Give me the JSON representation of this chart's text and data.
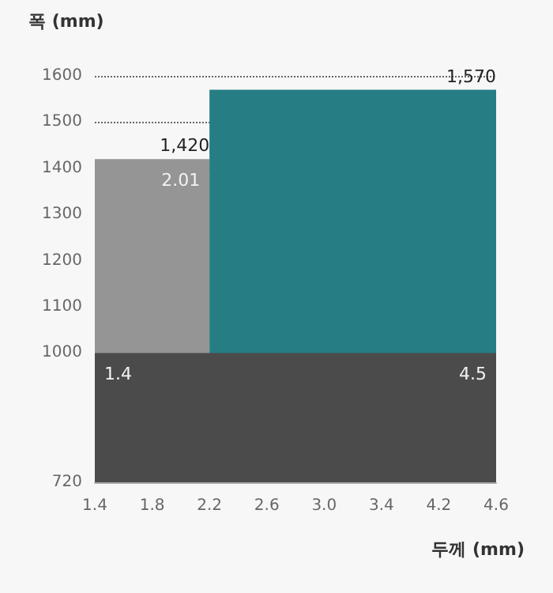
{
  "chart_data": {
    "type": "area",
    "ylabel": "폭 (mm)",
    "xlabel": "두께 (mm)",
    "categories": [
      "1.4",
      "1.8",
      "2.2",
      "2.6",
      "3.0",
      "3.4",
      "4.2",
      "4.6"
    ],
    "series": [
      {
        "color": "#959595",
        "values": [
          1420,
          1420,
          1420,
          null,
          null,
          null,
          null,
          null
        ],
        "value_labels": [
          null,
          null,
          "1,420",
          null,
          null,
          null,
          null,
          null
        ]
      },
      {
        "color": "#277d84",
        "values": [
          null,
          null,
          1570,
          1570,
          1570,
          1570,
          1570,
          1570
        ],
        "value_labels": [
          null,
          null,
          null,
          null,
          null,
          null,
          null,
          "1,570"
        ]
      }
    ],
    "bands": [
      {
        "axis": "y",
        "from": 720,
        "to": 1000,
        "color": "#4b4b4b"
      }
    ],
    "annotations": [
      {
        "text": "2.01",
        "x": "2.2",
        "y": 1420
      },
      {
        "text": "1.4",
        "x": "1.4",
        "y": 1000
      },
      {
        "text": "4.5",
        "x": "4.6",
        "y": 1000
      }
    ],
    "ylim": [
      720,
      1600
    ],
    "yticks": [
      720,
      1000,
      1100,
      1200,
      1300,
      1400,
      1500,
      1600
    ],
    "grid": "y"
  }
}
